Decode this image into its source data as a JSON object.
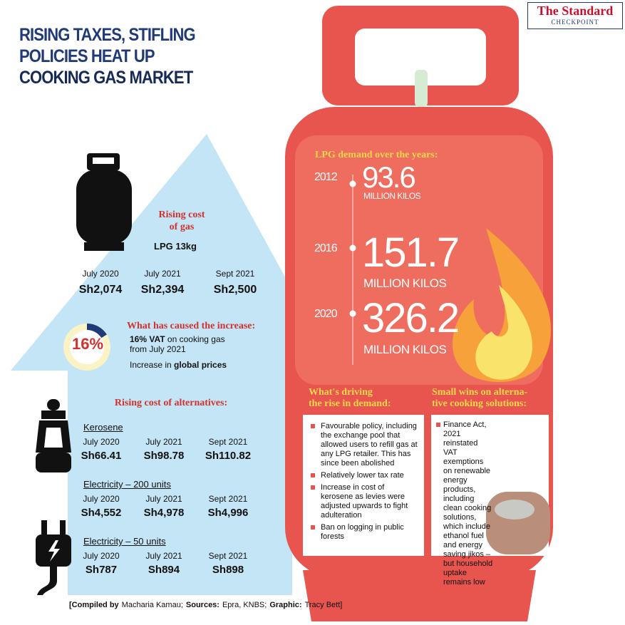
{
  "brand": {
    "name": "The Standard",
    "sub": "CHECKPOINT"
  },
  "title": {
    "lines": [
      "RISING TAXES, STIFLING",
      "POLICIES HEAT UP"
    ],
    "highlight": "COOKING GAS MARKET"
  },
  "gas": {
    "heading": [
      "Rising cost",
      "of gas"
    ],
    "product": "LPG 13kg",
    "periods": [
      "July 2020",
      "July 2021",
      "Sept 2021"
    ],
    "prices": [
      "Sh2,074",
      "Sh2,394",
      "Sh2,500"
    ]
  },
  "cause": {
    "share": {
      "value": 16,
      "label": "16%"
    },
    "heading": "What has caused the increase:",
    "items": [
      [
        "16% VAT",
        "on cooking gas from July 2021"
      ],
      [
        "Increase in",
        "global prices"
      ]
    ]
  },
  "alternatives": {
    "heading": "Rising cost of alternatives:",
    "groups": [
      {
        "name": "Kerosene",
        "periods": [
          "July 2020",
          "July 2021",
          "Sept 2021"
        ],
        "prices": [
          "Sh66.41",
          "Sh98.78",
          "Sh110.82"
        ]
      },
      {
        "name": "Electricity – 200 units",
        "periods": [
          "July 2020",
          "July 2021",
          "Sept 2021"
        ],
        "prices": [
          "Sh4,552",
          "Sh4,978",
          "Sh4,996"
        ]
      },
      {
        "name": "Electricity – 50 units",
        "periods": [
          "July 2020",
          "July 2021",
          "Sept 2021"
        ],
        "prices": [
          "Sh787",
          "Sh894",
          "Sh898"
        ]
      }
    ]
  },
  "demand": {
    "heading": "LPG demand over the years:",
    "entries": [
      {
        "year": "2012",
        "value": "93.6",
        "unit": "MILLION KILOS"
      },
      {
        "year": "2016",
        "value": "151.7",
        "unit": "MILLION KILOS"
      },
      {
        "year": "2020",
        "value": "326.2",
        "unit": "MILLION KILOS"
      }
    ]
  },
  "driving": {
    "heading": [
      "What's driving",
      "the rise in demand:"
    ],
    "items": [
      "Favourable policy, including the exchange pool that allowed users to refill gas at any LPG retailer. This has since been abolished",
      "Relatively lower tax rate",
      "Increase in cost of kerosene as levies were adjusted upwards to fight adulteration",
      "Ban on logging in public forests"
    ]
  },
  "wins": {
    "heading": [
      "Small wins on alterna-",
      "tive cooking solutions:"
    ],
    "text": "Finance Act, 2021 reinstated VAT exemptions on renewable energy products, including clean cooking solutions, which include ethanol fuel and energy saving jikos – but household uptake remains low"
  },
  "credit": [
    "[Compiled by",
    "Macharia Kamau;",
    "Sources:",
    "Epra, KNBS;",
    "Graphic:",
    "Tracy Bett]"
  ]
}
